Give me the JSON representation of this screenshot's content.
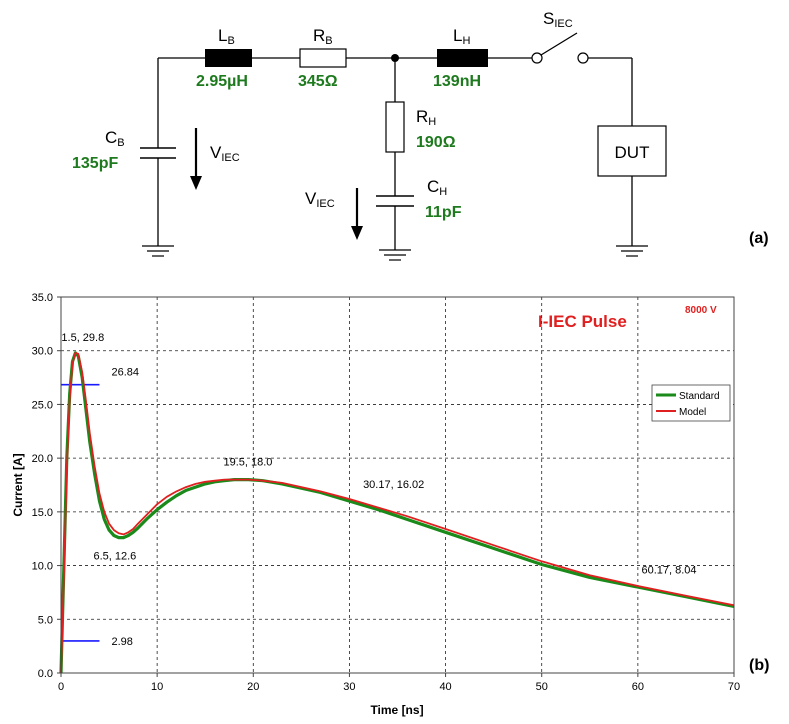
{
  "circuit": {
    "panel_label": "(a)",
    "cb": {
      "name": "C",
      "sub": "B",
      "value": "135pF"
    },
    "lb": {
      "name": "L",
      "sub": "B",
      "value": "2.95µH"
    },
    "rb": {
      "name": "R",
      "sub": "B",
      "value": "345Ω"
    },
    "lh": {
      "name": "L",
      "sub": "H",
      "value": "139nH"
    },
    "rh": {
      "name": "R",
      "sub": "H",
      "value": "190Ω"
    },
    "ch": {
      "name": "C",
      "sub": "H",
      "value": "11pF"
    },
    "switch": {
      "name": "S",
      "sub": "IEC"
    },
    "dut": "DUT",
    "viec_left": {
      "name": "V",
      "sub": "IEC"
    },
    "viec_right": {
      "name": "V",
      "sub": "IEC"
    },
    "colors": {
      "value_text": "#1e7a1e",
      "wire": "#000000"
    }
  },
  "chart_data": {
    "type": "line",
    "panel_label": "(b)",
    "title": "I-IEC Pulse",
    "voltage_label": "8000 V",
    "xlabel": "Time [ns]",
    "ylabel": "Current [A]",
    "xlim": [
      0,
      70
    ],
    "ylim": [
      0,
      35
    ],
    "x_ticks": [
      "0",
      "10",
      "20",
      "30",
      "40",
      "50",
      "60",
      "70"
    ],
    "y_ticks": [
      "0.0",
      "5.0",
      "10.0",
      "15.0",
      "20.0",
      "25.0",
      "30.0",
      "35.0"
    ],
    "grid": true,
    "legend_position": "right",
    "series": [
      {
        "name": "Standard",
        "color": "#1a8a1a",
        "x": [
          0,
          0.3,
          0.6,
          0.9,
          1.2,
          1.5,
          1.8,
          2.2,
          2.6,
          3,
          3.5,
          4,
          4.5,
          5,
          5.5,
          6,
          6.5,
          7,
          7.5,
          8,
          9,
          10,
          11,
          12,
          13,
          14,
          15,
          16,
          17,
          18,
          19.5,
          21,
          23,
          25,
          27,
          30,
          33,
          36,
          40,
          45,
          50,
          55,
          60,
          65,
          70
        ],
        "y": [
          0,
          10,
          20,
          26,
          29,
          29.8,
          29.5,
          27.5,
          24.5,
          21.5,
          18.5,
          16,
          14.3,
          13.3,
          12.8,
          12.6,
          12.6,
          12.8,
          13.1,
          13.5,
          14.4,
          15.2,
          15.9,
          16.5,
          17.0,
          17.3,
          17.6,
          17.8,
          17.9,
          18.0,
          18.0,
          17.9,
          17.6,
          17.2,
          16.8,
          16.0,
          15.2,
          14.3,
          13.1,
          11.6,
          10.1,
          8.9,
          8.0,
          7.1,
          6.2
        ]
      },
      {
        "name": "Model",
        "color": "#e02020",
        "x": [
          0,
          0.3,
          0.6,
          0.9,
          1.2,
          1.5,
          1.8,
          2.2,
          2.6,
          3,
          3.5,
          4,
          4.5,
          5,
          5.5,
          6,
          6.5,
          7,
          7.5,
          8,
          9,
          10,
          11,
          12,
          13,
          14,
          15,
          16,
          17,
          18,
          19.5,
          21,
          23,
          25,
          27,
          30,
          33,
          36,
          40,
          45,
          50,
          55,
          60,
          65,
          70
        ],
        "y": [
          0,
          9,
          19,
          25.5,
          28.8,
          29.8,
          29.7,
          28.0,
          25.3,
          22.3,
          19.2,
          16.7,
          15.0,
          13.9,
          13.3,
          13.0,
          12.9,
          13.1,
          13.4,
          13.9,
          14.8,
          15.7,
          16.4,
          16.9,
          17.3,
          17.6,
          17.8,
          17.9,
          18.0,
          18.0,
          18.0,
          17.9,
          17.7,
          17.3,
          16.9,
          16.2,
          15.4,
          14.6,
          13.4,
          11.9,
          10.4,
          9.1,
          8.1,
          7.2,
          6.3
        ]
      }
    ],
    "reference_lines": [
      {
        "y": 26.84,
        "x_range": [
          0,
          4
        ],
        "label": "26.84",
        "color": "#1a1aff"
      },
      {
        "y": 2.98,
        "x_range": [
          0,
          4
        ],
        "label": "2.98",
        "color": "#1a1aff"
      }
    ],
    "annotations": [
      {
        "text": "1.5, 29.8",
        "x": 1.5,
        "y": 29.8
      },
      {
        "text": "6.5, 12.6",
        "x": 6.5,
        "y": 12.6
      },
      {
        "text": "19.5, 18.0",
        "x": 19.5,
        "y": 18.0
      },
      {
        "text": "30.17, 16.02",
        "x": 30.17,
        "y": 16.02
      },
      {
        "text": "60.17, 8.04",
        "x": 60.17,
        "y": 8.04
      }
    ]
  }
}
